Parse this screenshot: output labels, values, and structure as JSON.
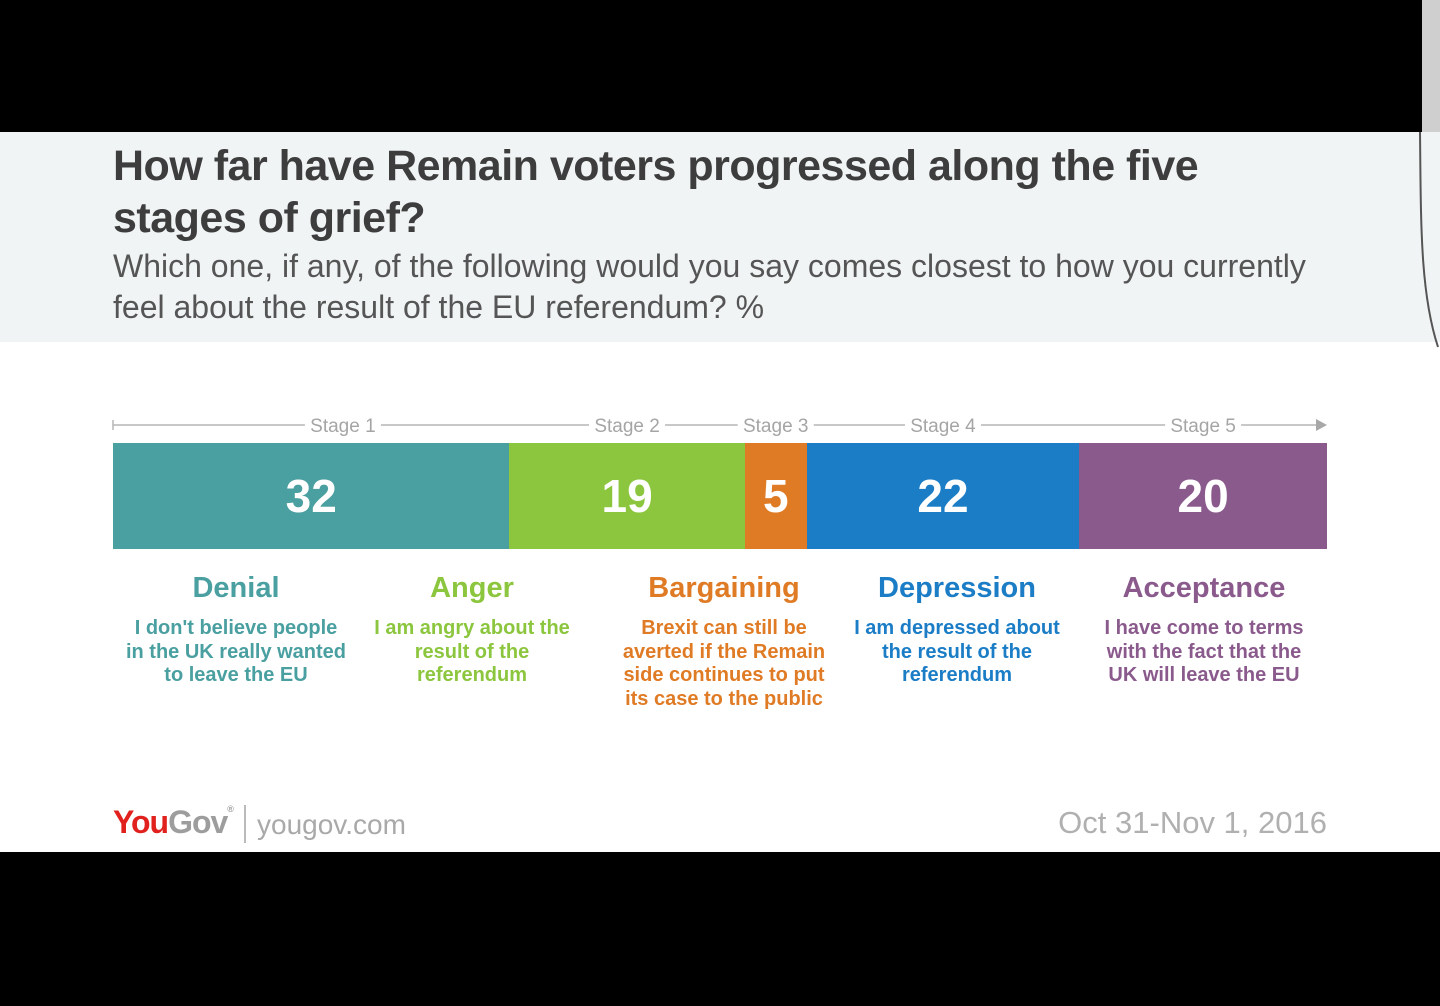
{
  "title": "How far have Remain voters progressed along the five stages of grief?",
  "subtitle": "Which one, if any, of the following would you say comes closest to how you currently feel about the result of the EU referendum? %",
  "chart_data": {
    "type": "bar",
    "orientation": "horizontal-stacked",
    "title": "How far have Remain voters progressed along the five stages of grief?",
    "subtitle": "Which one, if any, of the following would you say comes closest to how you currently feel about the result of the EU referendum? %",
    "stages": [
      {
        "stage_label": "Stage 1",
        "name": "Denial",
        "value": 32,
        "color": "#4a9fa0",
        "text_color": "#4a9fa0",
        "description": "I don't believe people in the UK really wanted to leave the EU",
        "desc_lines": [
          "I don't believe people",
          "in the UK really wanted",
          "to leave the EU"
        ]
      },
      {
        "stage_label": "Stage 2",
        "name": "Anger",
        "value": 19,
        "color": "#8cc63e",
        "text_color": "#8cc63e",
        "description": "I am angry about the result of the referendum",
        "desc_lines": [
          "I am angry about the",
          "result of the",
          "referendum"
        ]
      },
      {
        "stage_label": "Stage 3",
        "name": "Bargaining",
        "value": 5,
        "color": "#e07b25",
        "text_color": "#e07b25",
        "description": "Brexit can still be averted if the Remain side continues to put its case to the public",
        "desc_lines": [
          "Brexit can still be",
          "averted if the Remain",
          "side continues to put",
          "its case to the public"
        ]
      },
      {
        "stage_label": "Stage 4",
        "name": "Depression",
        "value": 22,
        "color": "#1b7dc6",
        "text_color": "#1b7dc6",
        "description": "I am depressed about the result of the referendum",
        "desc_lines": [
          "I am depressed about",
          "the result of the",
          "referendum"
        ]
      },
      {
        "stage_label": "Stage 5",
        "name": "Acceptance",
        "value": 20,
        "color": "#8a5a8c",
        "text_color": "#8a5a8c",
        "description": "I have come to terms with the fact that the UK will leave the EU",
        "desc_lines": [
          "I have come to terms",
          "with the fact that the",
          "UK will leave the EU"
        ]
      }
    ],
    "categories": [
      "Denial",
      "Anger",
      "Bargaining",
      "Depression",
      "Acceptance"
    ],
    "values": [
      32,
      19,
      5,
      22,
      20
    ],
    "unit": "%"
  },
  "footer": {
    "logo_you": "You",
    "logo_gov": "Gov",
    "logo_reg": "®",
    "url": "yougov.com",
    "date": "Oct 31-Nov 1, 2016"
  }
}
